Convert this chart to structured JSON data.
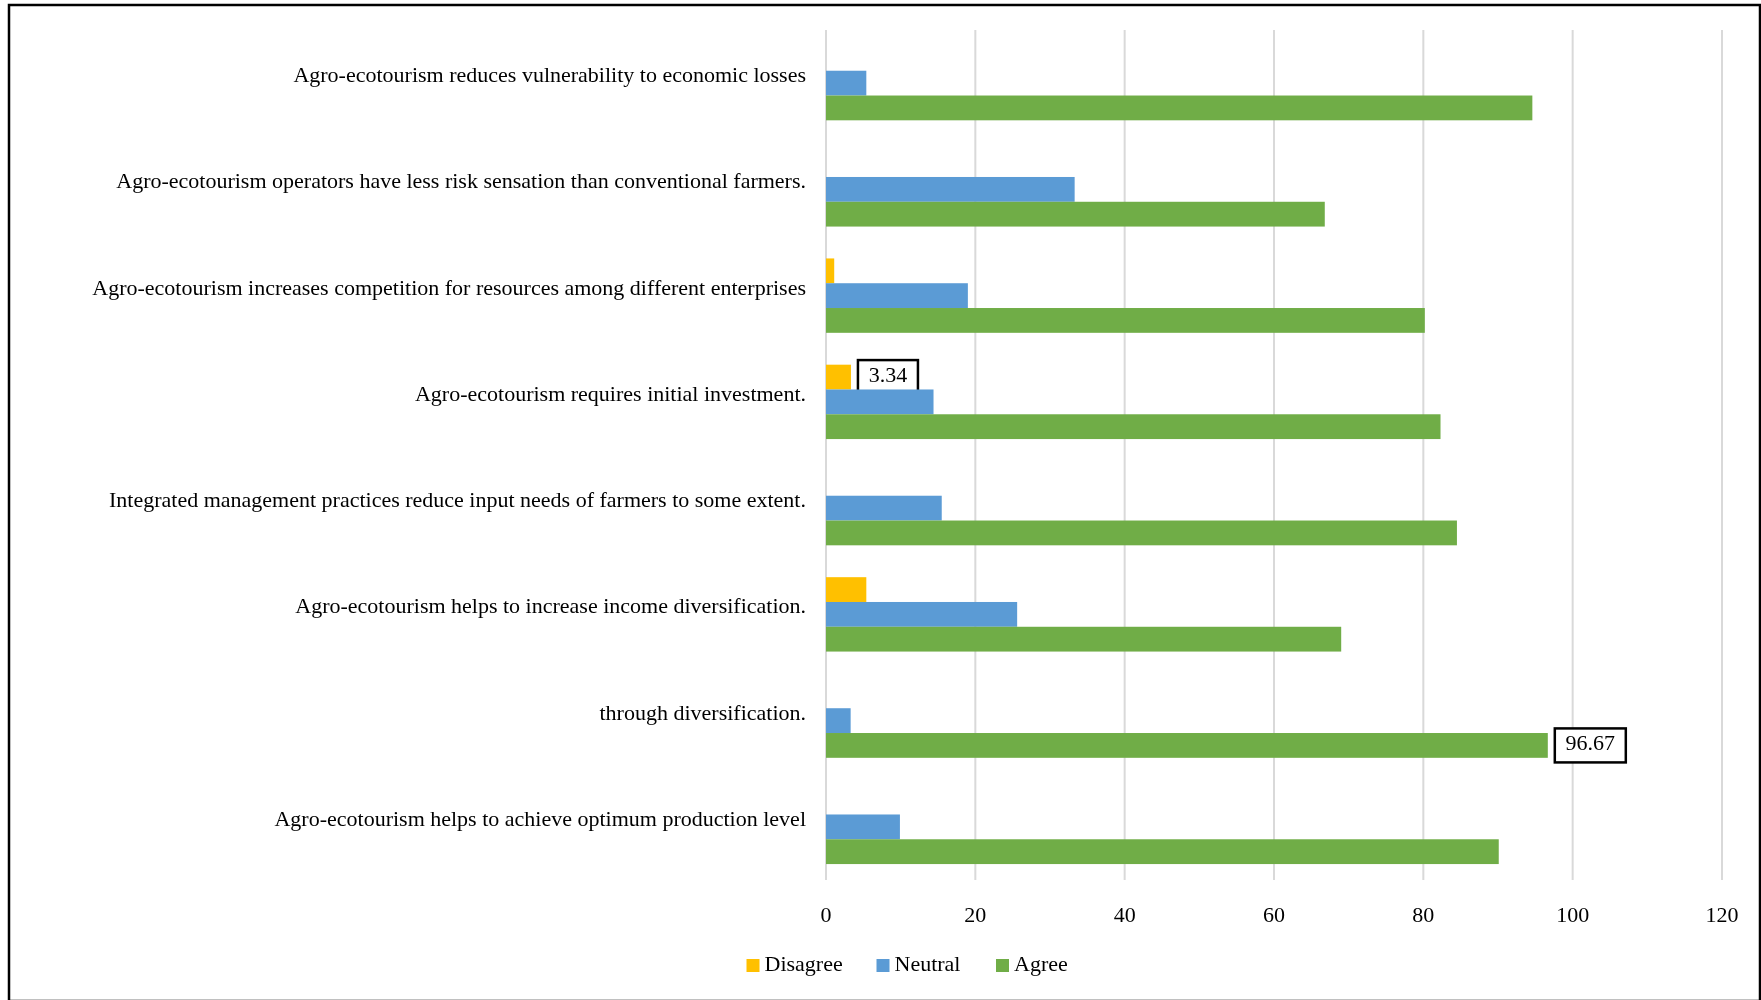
{
  "chart_data": {
    "type": "bar",
    "orientation": "horizontal",
    "categories": [
      "Agro-ecotourism reduces vulnerability to economic losses",
      "Agro-ecotourism operators have less risk sensation than conventional farmers.",
      "Agro-ecotourism increases competition for resources among different enterprises",
      "Agro-ecotourism requires initial investment.",
      "Integrated management practices reduce input needs of farmers to some extent.",
      "Agro-ecotourism helps to increase income diversification.",
      "through diversification.",
      "Agro-ecotourism helps to achieve optimum production level"
    ],
    "series": [
      {
        "name": "Disagree",
        "color": "#ffc000",
        "values": [
          0,
          0,
          1.1,
          3.34,
          0,
          5.4,
          0,
          0
        ],
        "value_labels": [
          null,
          null,
          null,
          "3.34",
          null,
          null,
          null,
          null
        ]
      },
      {
        "name": "Neutral",
        "color": "#5b9bd5",
        "values": [
          5.4,
          33.3,
          19.0,
          14.4,
          15.5,
          25.6,
          3.3,
          9.9
        ]
      },
      {
        "name": "Agree",
        "color": "#70ad47",
        "values": [
          94.6,
          66.8,
          80.2,
          82.3,
          84.5,
          69.0,
          96.67,
          90.1
        ],
        "value_labels": [
          null,
          null,
          null,
          null,
          null,
          null,
          "96.67",
          null
        ]
      }
    ],
    "xlim": [
      0,
      120
    ],
    "xticks": [
      0,
      20,
      40,
      60,
      80,
      100,
      120
    ],
    "grid": "x",
    "legend": "bottom"
  }
}
